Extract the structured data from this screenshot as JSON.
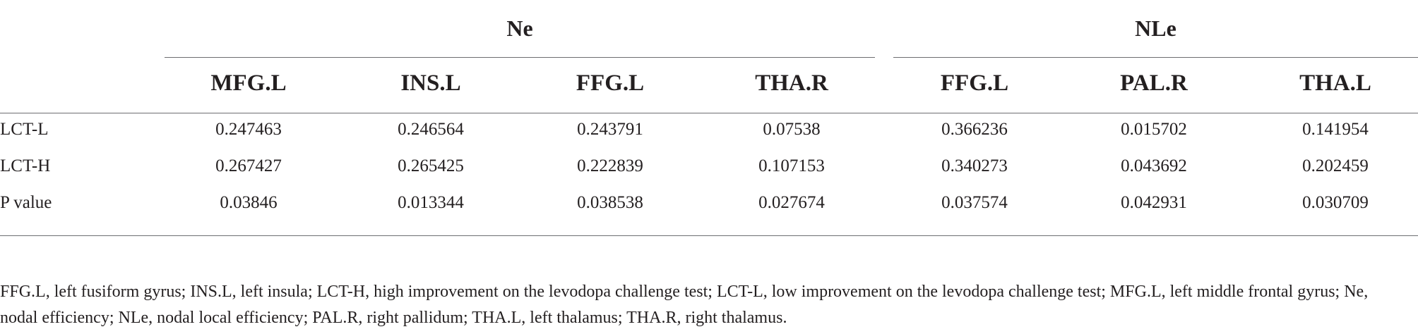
{
  "table": {
    "groups": [
      {
        "label": "Ne"
      },
      {
        "label": "NLe"
      }
    ],
    "columns": [
      "MFG.L",
      "INS.L",
      "FFG.L",
      "THA.R",
      "FFG.L",
      "PAL.R",
      "THA.L"
    ],
    "rows": [
      {
        "label": "LCT-L",
        "values": [
          "0.247463",
          "0.246564",
          "0.243791",
          "0.07538",
          "0.366236",
          "0.015702",
          "0.141954"
        ]
      },
      {
        "label": "LCT-H",
        "values": [
          "0.267427",
          "0.265425",
          "0.222839",
          "0.107153",
          "0.340273",
          "0.043692",
          "0.202459"
        ]
      },
      {
        "label": "P value",
        "values": [
          "0.03846",
          "0.013344",
          "0.038538",
          "0.027674",
          "0.037574",
          "0.042931",
          "0.030709"
        ]
      }
    ]
  },
  "footnote": "FFG.L, left fusiform gyrus; INS.L, left insula; LCT-H, high improvement on the levodopa challenge test; LCT-L, low improvement on the levodopa challenge test; MFG.L, left middle frontal gyrus; Ne, nodal efficiency; NLe, nodal local efficiency; PAL.R, right pallidum; THA.L, left thalamus; THA.R, right thalamus."
}
